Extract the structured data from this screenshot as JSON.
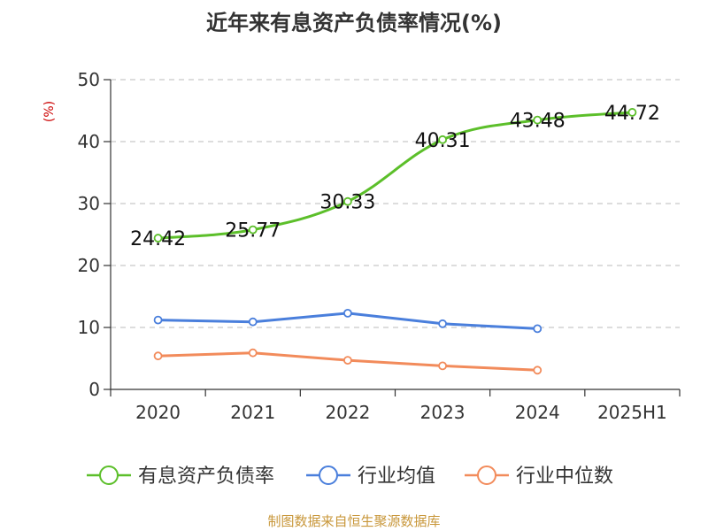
{
  "chart_data": {
    "type": "line",
    "title": "近年来有息资产负债率情况(%)",
    "ylabel": "(%)",
    "xlabel": "",
    "ylim": [
      0,
      50
    ],
    "yticks": [
      "0",
      "10",
      "20",
      "30",
      "40",
      "50"
    ],
    "categories": [
      "2020",
      "2021",
      "2022",
      "2023",
      "2024",
      "2025H1"
    ],
    "grid": true,
    "legend_position": "bottom",
    "series": [
      {
        "name": "有息资产负债率",
        "color": "#5cbf2a",
        "values": [
          24.42,
          25.77,
          30.33,
          40.31,
          43.48,
          44.72
        ],
        "labels": [
          "24.42",
          "25.77",
          "30.33",
          "40.31",
          "43.48",
          "44.72"
        ]
      },
      {
        "name": "行业均值",
        "color": "#4a7fdc",
        "values": [
          11.2,
          10.9,
          12.3,
          10.6,
          9.8,
          null
        ]
      },
      {
        "name": "行业中位数",
        "color": "#f28b5b",
        "values": [
          5.4,
          5.9,
          4.7,
          3.8,
          3.1,
          null
        ]
      }
    ]
  },
  "source": "制图数据来自恒生聚源数据库"
}
